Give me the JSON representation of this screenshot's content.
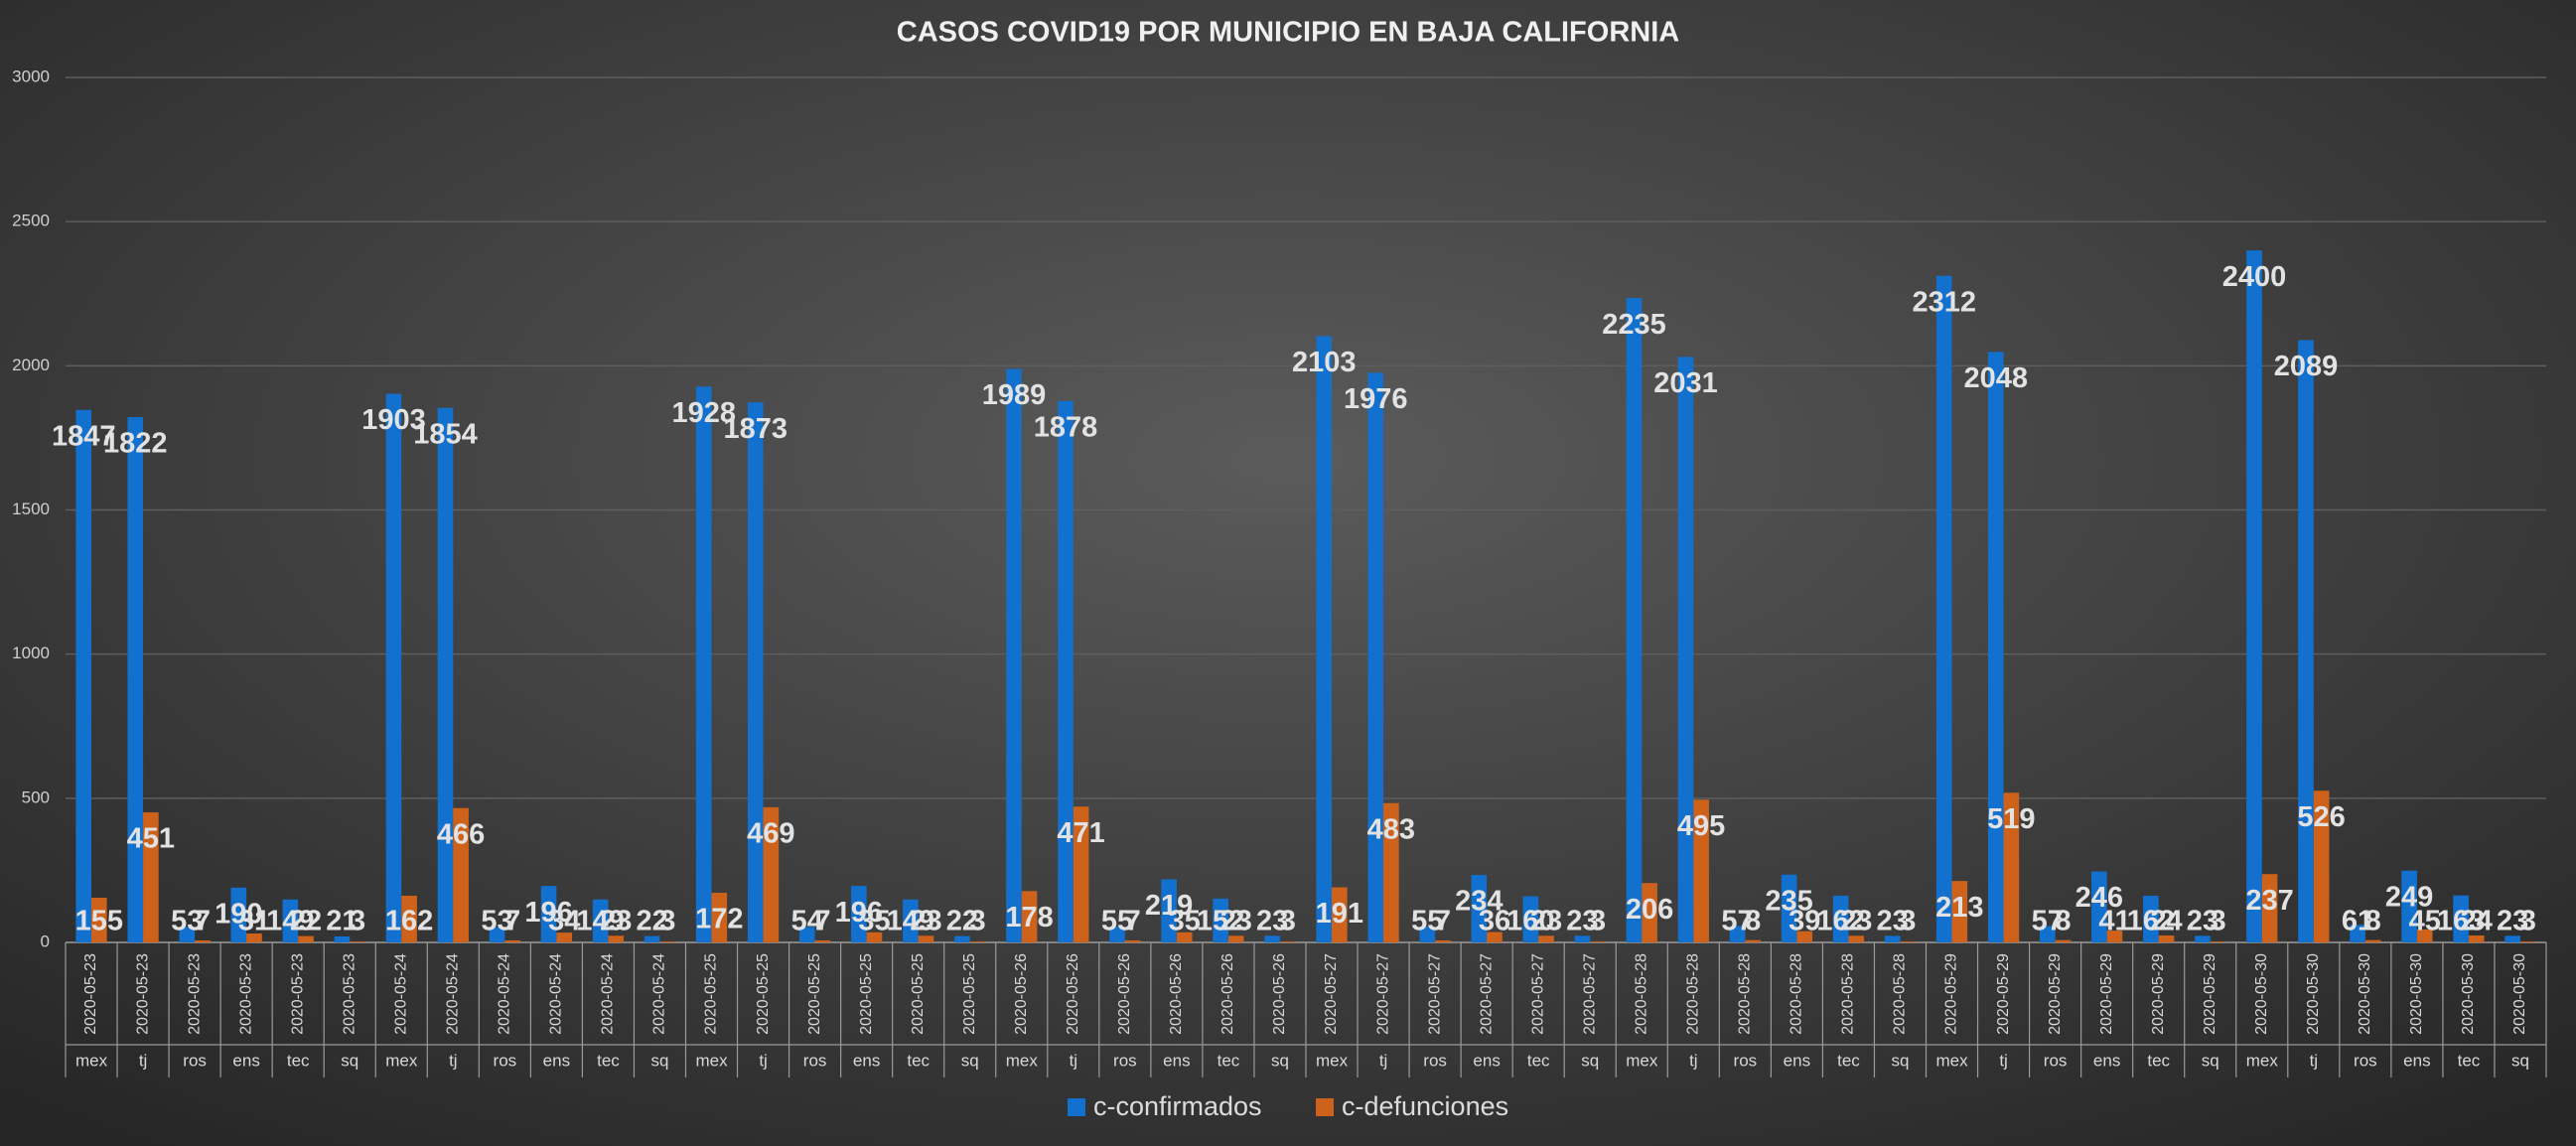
{
  "chart_data": {
    "type": "bar",
    "title": "CASOS COVID19 POR MUNICIPIO EN BAJA CALIFORNIA",
    "categories": [
      [
        "2020-05-23",
        "mex"
      ],
      [
        "2020-05-23",
        "tj"
      ],
      [
        "2020-05-23",
        "ros"
      ],
      [
        "2020-05-23",
        "ens"
      ],
      [
        "2020-05-23",
        "tec"
      ],
      [
        "2020-05-23",
        "sq"
      ],
      [
        "2020-05-24",
        "mex"
      ],
      [
        "2020-05-24",
        "tj"
      ],
      [
        "2020-05-24",
        "ros"
      ],
      [
        "2020-05-24",
        "ens"
      ],
      [
        "2020-05-24",
        "tec"
      ],
      [
        "2020-05-24",
        "sq"
      ],
      [
        "2020-05-25",
        "mex"
      ],
      [
        "2020-05-25",
        "tj"
      ],
      [
        "2020-05-25",
        "ros"
      ],
      [
        "2020-05-25",
        "ens"
      ],
      [
        "2020-05-25",
        "tec"
      ],
      [
        "2020-05-25",
        "sq"
      ],
      [
        "2020-05-26",
        "mex"
      ],
      [
        "2020-05-26",
        "tj"
      ],
      [
        "2020-05-26",
        "ros"
      ],
      [
        "2020-05-26",
        "ens"
      ],
      [
        "2020-05-26",
        "tec"
      ],
      [
        "2020-05-26",
        "sq"
      ],
      [
        "2020-05-27",
        "mex"
      ],
      [
        "2020-05-27",
        "tj"
      ],
      [
        "2020-05-27",
        "ros"
      ],
      [
        "2020-05-27",
        "ens"
      ],
      [
        "2020-05-27",
        "tec"
      ],
      [
        "2020-05-27",
        "sq"
      ],
      [
        "2020-05-28",
        "mex"
      ],
      [
        "2020-05-28",
        "tj"
      ],
      [
        "2020-05-28",
        "ros"
      ],
      [
        "2020-05-28",
        "ens"
      ],
      [
        "2020-05-28",
        "tec"
      ],
      [
        "2020-05-28",
        "sq"
      ],
      [
        "2020-05-29",
        "mex"
      ],
      [
        "2020-05-29",
        "tj"
      ],
      [
        "2020-05-29",
        "ros"
      ],
      [
        "2020-05-29",
        "ens"
      ],
      [
        "2020-05-29",
        "tec"
      ],
      [
        "2020-05-29",
        "sq"
      ],
      [
        "2020-05-30",
        "mex"
      ],
      [
        "2020-05-30",
        "tj"
      ],
      [
        "2020-05-30",
        "ros"
      ],
      [
        "2020-05-30",
        "ens"
      ],
      [
        "2020-05-30",
        "tec"
      ],
      [
        "2020-05-30",
        "sq"
      ]
    ],
    "series": [
      {
        "name": "c-confirmados",
        "color": "#1270cf",
        "values": [
          1847,
          1822,
          53,
          190,
          149,
          21,
          1903,
          1854,
          53,
          196,
          149,
          22,
          1928,
          1873,
          54,
          196,
          149,
          22,
          1989,
          1878,
          55,
          219,
          152,
          23,
          2103,
          1976,
          55,
          234,
          160,
          23,
          2235,
          2031,
          57,
          235,
          162,
          23,
          2312,
          2048,
          57,
          246,
          162,
          23,
          2400,
          2089,
          61,
          249,
          163,
          23
        ]
      },
      {
        "name": "c-defunciones",
        "color": "#cf621b",
        "values": [
          155,
          451,
          7,
          31,
          22,
          3,
          162,
          466,
          7,
          34,
          23,
          3,
          172,
          469,
          7,
          35,
          23,
          3,
          178,
          471,
          7,
          35,
          23,
          3,
          191,
          483,
          7,
          36,
          23,
          3,
          206,
          495,
          8,
          39,
          23,
          3,
          213,
          519,
          8,
          41,
          24,
          3,
          237,
          526,
          8,
          45,
          24,
          3
        ]
      }
    ],
    "ylim": [
      0,
      3000
    ],
    "yticks": [
      0,
      500,
      1000,
      1500,
      2000,
      2500,
      3000
    ],
    "grid": true,
    "legend": "bottom"
  }
}
